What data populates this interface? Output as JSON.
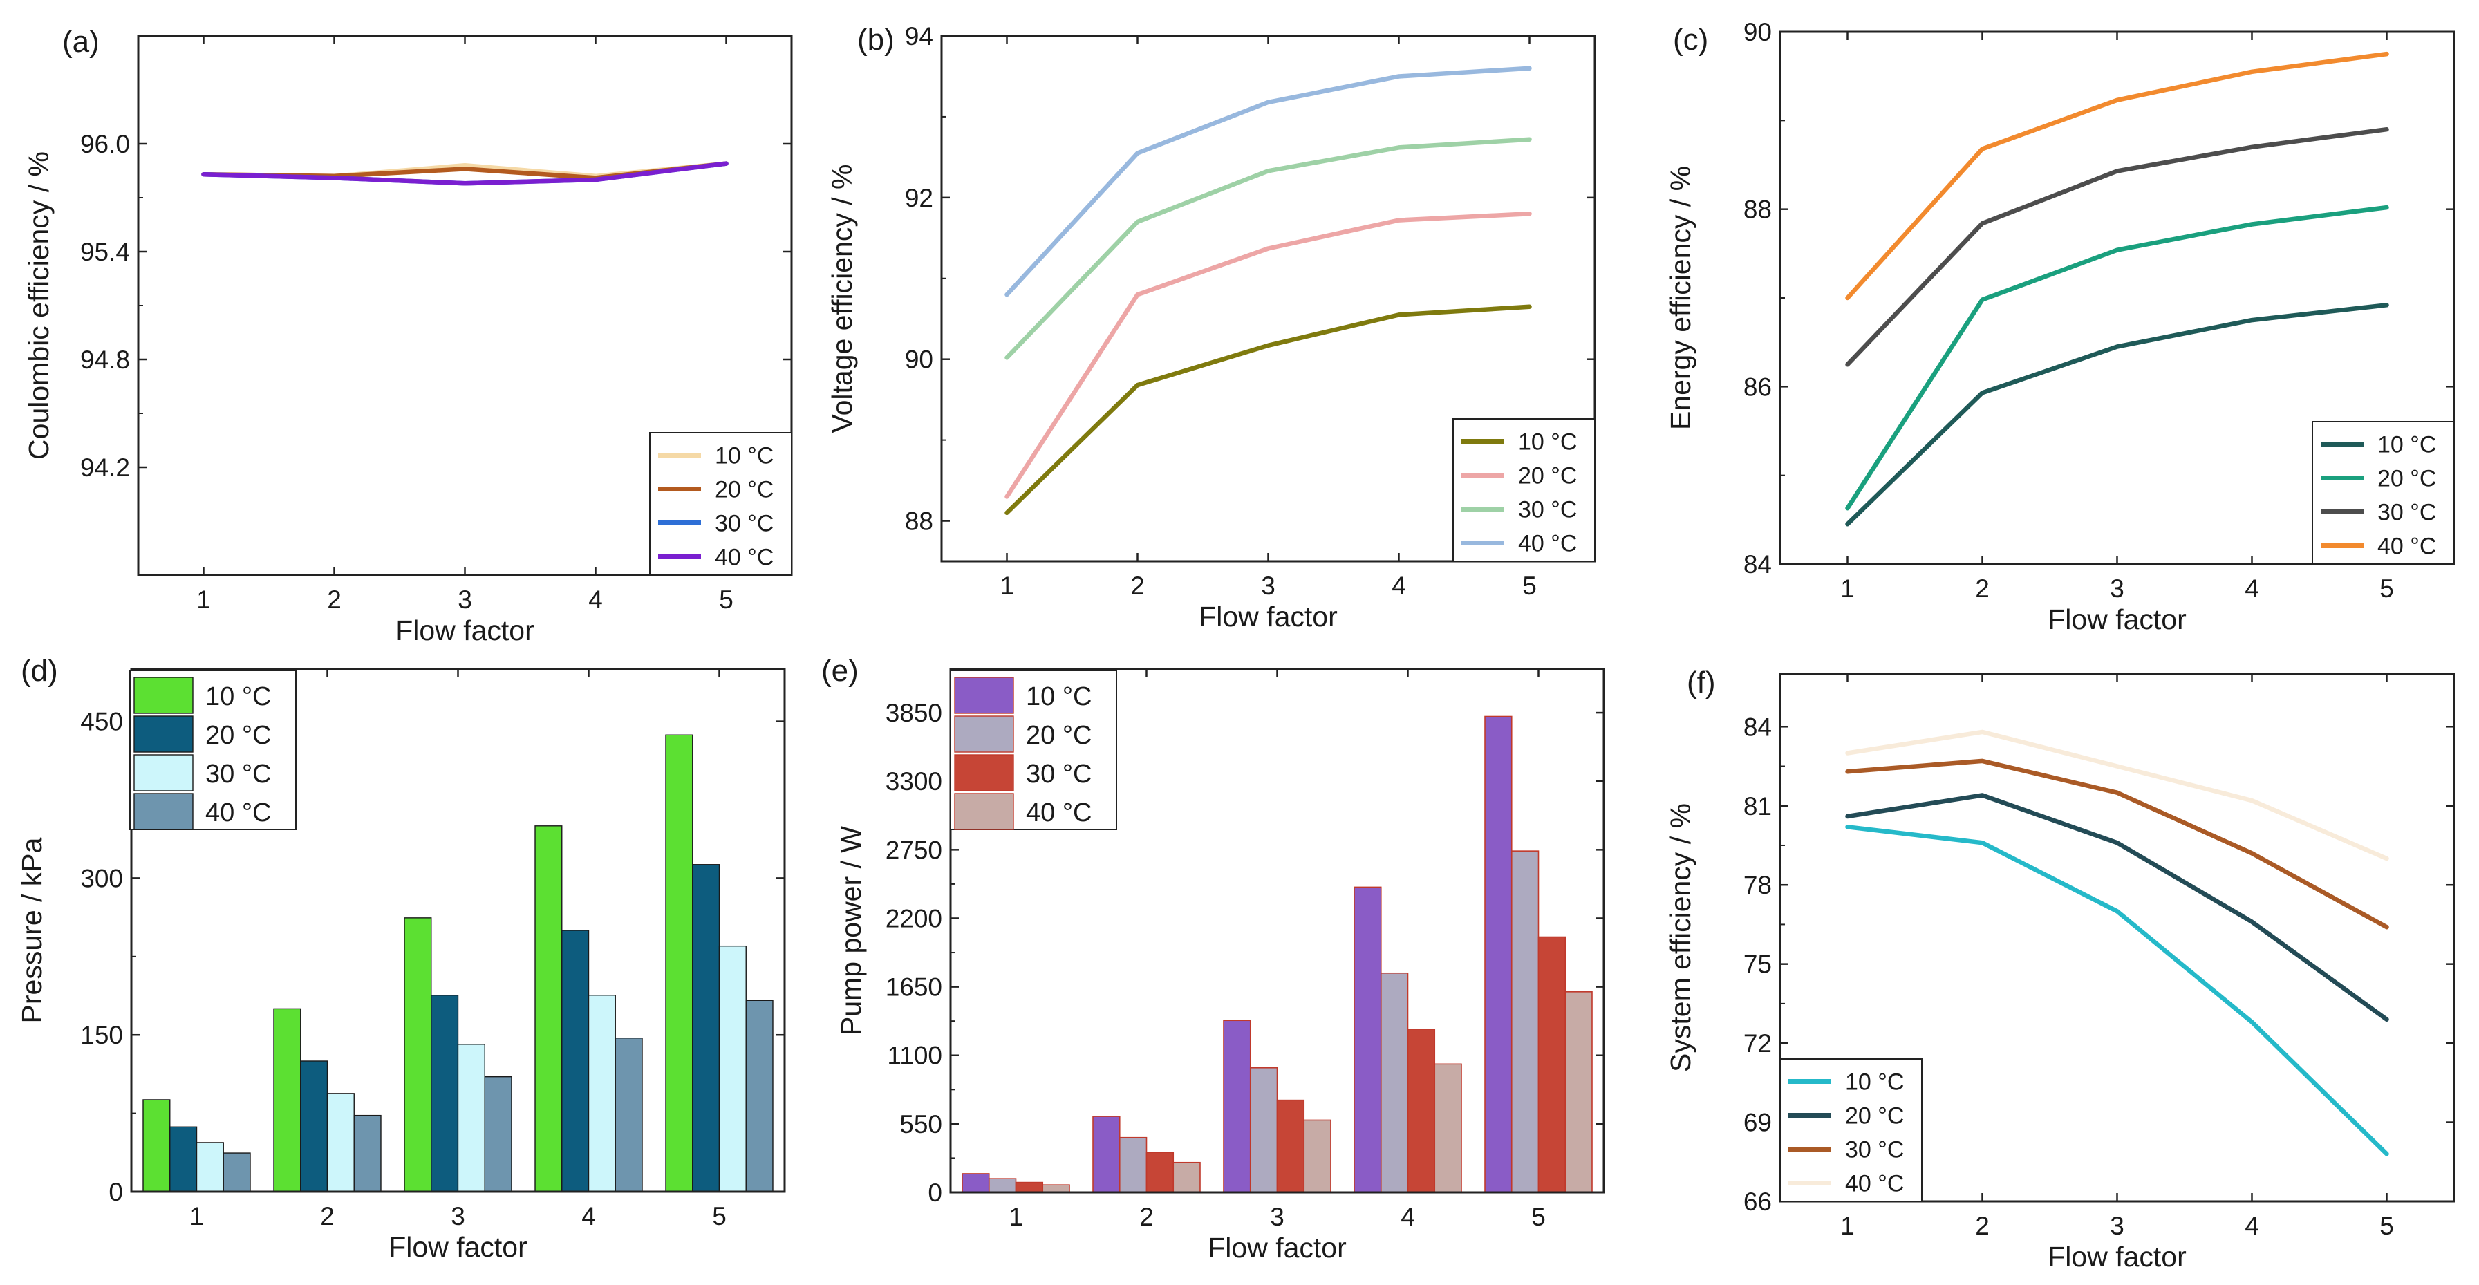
{
  "chart_data": [
    {
      "panel": "(a)",
      "type": "line",
      "xlabel": "Flow factor",
      "ylabel": "Coulombic efficiency / %",
      "x": [
        1,
        2,
        3,
        4,
        5
      ],
      "xticks": [
        "1",
        "2",
        "3",
        "4",
        "5"
      ],
      "xlim": [
        0.5,
        5.5
      ],
      "ylim": [
        93.6,
        96.6
      ],
      "yticks": [
        94.2,
        94.8,
        95.4,
        96.0
      ],
      "ytick_labels": [
        "94.2",
        "94.8",
        "95.4",
        "96.0"
      ],
      "legend": "bottom-right",
      "series": [
        {
          "name": "10 °C",
          "color": "#F5D9A6",
          "values": [
            95.83,
            95.82,
            95.88,
            95.82,
            95.89
          ]
        },
        {
          "name": "20 °C",
          "color": "#B35A1F",
          "values": [
            95.83,
            95.82,
            95.86,
            95.81,
            95.89
          ]
        },
        {
          "name": "30 °C",
          "color": "#2E6FD6",
          "values": [
            95.83,
            95.81,
            95.78,
            95.8,
            95.89
          ]
        },
        {
          "name": "40 °C",
          "color": "#7A1FD0",
          "values": [
            95.83,
            95.81,
            95.78,
            95.8,
            95.89
          ]
        }
      ]
    },
    {
      "panel": "(b)",
      "type": "line",
      "xlabel": "Flow factor",
      "ylabel": "Voltage efficiency / %",
      "x": [
        1,
        2,
        3,
        4,
        5
      ],
      "xticks": [
        "1",
        "2",
        "3",
        "4",
        "5"
      ],
      "xlim": [
        0.5,
        5.5
      ],
      "ylim": [
        87.5,
        94
      ],
      "yticks": [
        88,
        90,
        92,
        94
      ],
      "ytick_labels": [
        "88",
        "90",
        "92",
        "94"
      ],
      "legend": "bottom-right",
      "series": [
        {
          "name": "10 °C",
          "color": "#7F7A0E",
          "values": [
            88.1,
            89.68,
            90.17,
            90.55,
            90.65
          ]
        },
        {
          "name": "20 °C",
          "color": "#EDA6A6",
          "values": [
            88.3,
            90.8,
            91.37,
            91.72,
            91.8
          ]
        },
        {
          "name": "30 °C",
          "color": "#9ED1A6",
          "values": [
            90.02,
            91.7,
            92.33,
            92.62,
            92.72
          ]
        },
        {
          "name": "40 °C",
          "color": "#98B8DE",
          "values": [
            90.8,
            92.55,
            93.18,
            93.5,
            93.6
          ]
        }
      ]
    },
    {
      "panel": "(c)",
      "type": "line",
      "xlabel": "Flow factor",
      "ylabel": "Energy efficiency / %",
      "x": [
        1,
        2,
        3,
        4,
        5
      ],
      "xticks": [
        "1",
        "2",
        "3",
        "4",
        "5"
      ],
      "xlim": [
        0.5,
        5.5
      ],
      "ylim": [
        84,
        90
      ],
      "yticks": [
        84,
        86,
        88,
        90
      ],
      "ytick_labels": [
        "84",
        "86",
        "88",
        "90"
      ],
      "legend": "bottom-right",
      "series": [
        {
          "name": "10 °C",
          "color": "#1F5A58",
          "values": [
            84.45,
            85.93,
            86.45,
            86.75,
            86.92
          ]
        },
        {
          "name": "20 °C",
          "color": "#1AA07E",
          "values": [
            84.63,
            86.98,
            87.54,
            87.83,
            88.02
          ]
        },
        {
          "name": "30 °C",
          "color": "#4D4D4D",
          "values": [
            86.25,
            87.84,
            88.43,
            88.7,
            88.9
          ]
        },
        {
          "name": "40 °C",
          "color": "#F28A2E",
          "values": [
            87.0,
            88.68,
            89.23,
            89.55,
            89.75
          ]
        }
      ]
    },
    {
      "panel": "(d)",
      "type": "bar",
      "xlabel": "Flow factor",
      "ylabel": "Pressure / kPa",
      "categories": [
        "1",
        "2",
        "3",
        "4",
        "5"
      ],
      "ylim": [
        0,
        500
      ],
      "yticks": [
        0,
        150,
        300,
        450
      ],
      "ytick_labels": [
        "0",
        "150",
        "300",
        "450"
      ],
      "legend": "top-left",
      "series": [
        {
          "name": "10 °C",
          "color": "#5CE032",
          "values": [
            88,
            175,
            262,
            350,
            437
          ]
        },
        {
          "name": "20 °C",
          "color": "#0D5C7E",
          "values": [
            62,
            125,
            188,
            250,
            313
          ]
        },
        {
          "name": "30 °C",
          "color": "#CDF6FB",
          "values": [
            47,
            94,
            141,
            188,
            235
          ]
        },
        {
          "name": "40 °C",
          "color": "#6E95AE",
          "values": [
            37,
            73,
            110,
            147,
            183
          ]
        }
      ]
    },
    {
      "panel": "(e)",
      "type": "bar",
      "xlabel": "Flow factor",
      "ylabel": "Pump power / W",
      "categories": [
        "1",
        "2",
        "3",
        "4",
        "5"
      ],
      "ylim": [
        0,
        4200
      ],
      "yticks": [
        0,
        550,
        1100,
        1650,
        2200,
        2750,
        3300,
        3850
      ],
      "ytick_labels": [
        "0",
        "550",
        "1100",
        "1650",
        "2200",
        "2750",
        "3300",
        "3850"
      ],
      "legend": "top-left",
      "series": [
        {
          "name": "10 °C",
          "color": "#8A5CC6",
          "values": [
            150,
            610,
            1380,
            2450,
            3820
          ]
        },
        {
          "name": "20 °C",
          "color": "#ADAAC0",
          "values": [
            110,
            440,
            1000,
            1760,
            2740
          ]
        },
        {
          "name": "30 °C",
          "color": "#C64536",
          "values": [
            80,
            320,
            740,
            1310,
            2050
          ]
        },
        {
          "name": "40 °C",
          "color": "#C7ABA6",
          "values": [
            60,
            240,
            580,
            1030,
            1610
          ]
        }
      ]
    },
    {
      "panel": "(f)",
      "type": "line",
      "xlabel": "Flow factor",
      "ylabel": "System efficiency / %",
      "x": [
        1,
        2,
        3,
        4,
        5
      ],
      "xticks": [
        "1",
        "2",
        "3",
        "4",
        "5"
      ],
      "xlim": [
        0.5,
        5.5
      ],
      "ylim": [
        66,
        86
      ],
      "yticks": [
        66,
        69,
        72,
        75,
        78,
        81,
        84
      ],
      "ytick_labels": [
        "66",
        "69",
        "72",
        "75",
        "78",
        "81",
        "84"
      ],
      "legend": "bottom-left",
      "series": [
        {
          "name": "10 °C",
          "color": "#25B9C9",
          "values": [
            80.2,
            79.6,
            77.0,
            72.8,
            67.8
          ]
        },
        {
          "name": "20 °C",
          "color": "#234B56",
          "values": [
            80.6,
            81.4,
            79.6,
            76.6,
            72.9
          ]
        },
        {
          "name": "30 °C",
          "color": "#AA5A26",
          "values": [
            82.3,
            82.7,
            81.5,
            79.2,
            76.4
          ]
        },
        {
          "name": "40 °C",
          "color": "#F8EBDA",
          "values": [
            83.0,
            83.8,
            82.5,
            81.2,
            79.0
          ]
        }
      ]
    }
  ]
}
